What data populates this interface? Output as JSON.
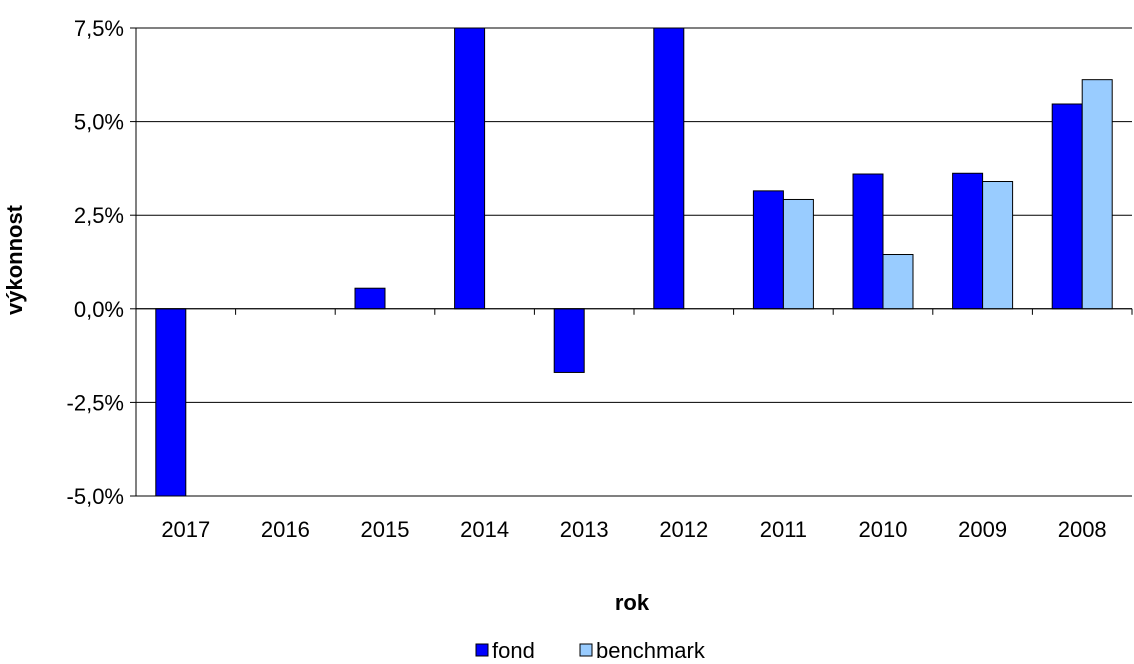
{
  "chart_data": {
    "type": "bar",
    "categories": [
      "2017",
      "2016",
      "2015",
      "2014",
      "2013",
      "2012",
      "2011",
      "2010",
      "2009",
      "2008"
    ],
    "series": [
      {
        "name": "fond",
        "color": "#0000ff",
        "values": [
          -5.0,
          null,
          0.55,
          7.5,
          -1.7,
          7.5,
          3.15,
          3.6,
          3.62,
          5.47
        ]
      },
      {
        "name": "benchmark",
        "color": "#99ccff",
        "values": [
          null,
          null,
          null,
          null,
          null,
          null,
          2.92,
          1.45,
          3.4,
          6.12
        ]
      }
    ],
    "xlabel": "rok",
    "ylabel": "výkonnost",
    "ylim": [
      -5.0,
      7.5
    ],
    "ytick_values": [
      -5.0,
      -2.5,
      0.0,
      2.5,
      5.0,
      7.5
    ],
    "ytick_labels": [
      "-5,0%",
      "-2,5%",
      "0,0%",
      "2,5%",
      "5,0%",
      "7,5%"
    ],
    "grid": true,
    "legend_position": "bottom-center"
  }
}
